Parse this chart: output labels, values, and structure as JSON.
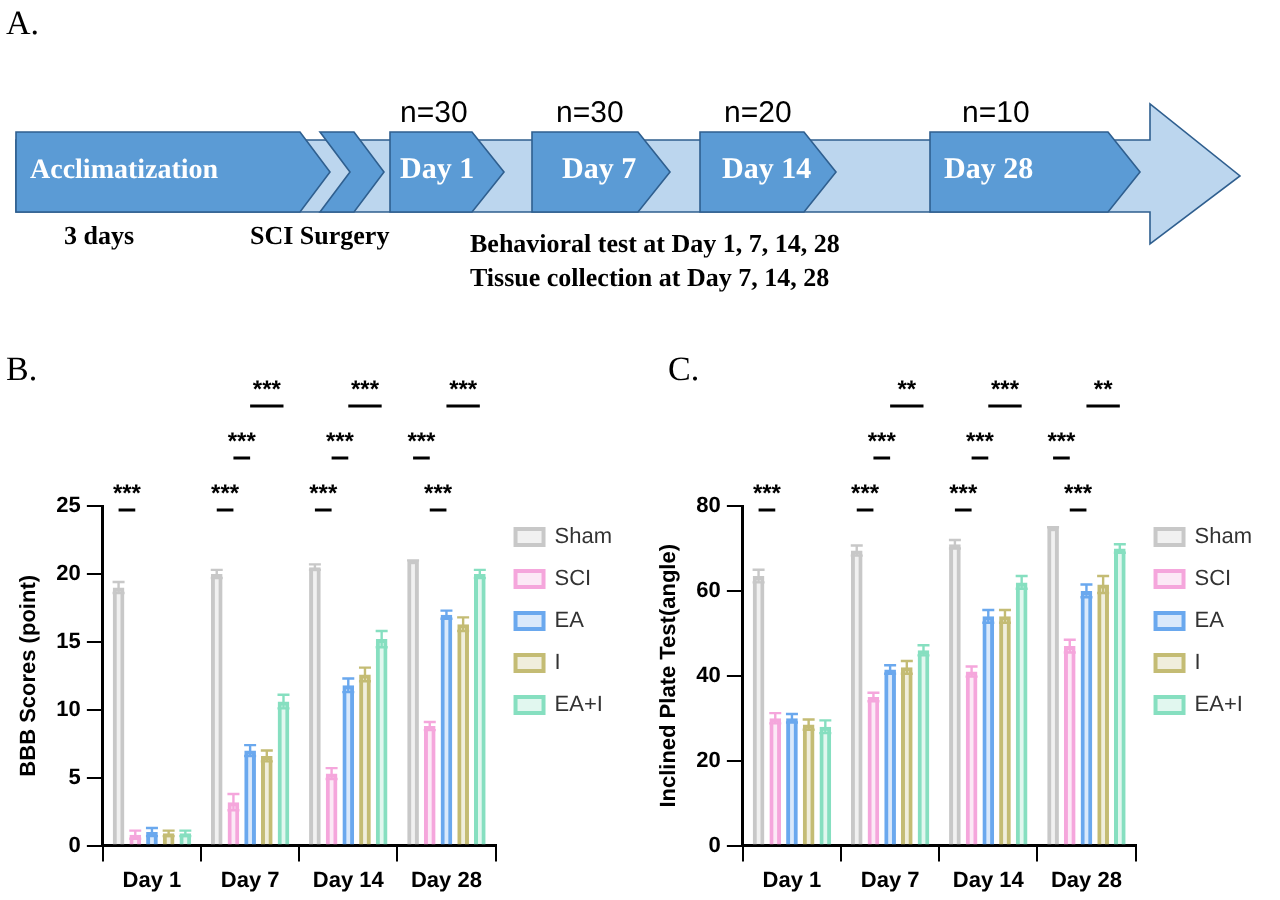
{
  "chart_data": [
    {
      "type": "other",
      "title": "A.",
      "annotations": [
        "n=30",
        "n=30",
        "n=20",
        "n=10",
        "Acclimatization",
        "Day 1",
        "Day 7",
        "Day 14",
        "Day 28",
        "3 days",
        "SCI Surgery",
        "Behavioral test at Day 1, 7, 14, 28",
        "Tissue collection at Day 7, 14, 28"
      ]
    },
    {
      "type": "bar",
      "title": "B.",
      "ylabel": "BBB Scores (point)",
      "categories": [
        "Day 1",
        "Day 7",
        "Day 14",
        "Day 28"
      ],
      "ylim": [
        0,
        25
      ],
      "yticks": [
        0,
        5,
        10,
        15,
        20,
        25
      ],
      "grid": false,
      "legend": "right",
      "series": [
        {
          "name": "Sham",
          "color": "#c8c8c8",
          "values": [
            19,
            20,
            20.5,
            21
          ],
          "errors": [
            0.4,
            0.3,
            0.2,
            0
          ]
        },
        {
          "name": "SCI",
          "color": "#f5a6dc",
          "values": [
            0.8,
            3.2,
            5.3,
            8.8
          ],
          "errors": [
            0.3,
            0.6,
            0.4,
            0.3
          ]
        },
        {
          "name": "EA",
          "color": "#6aa8ee",
          "values": [
            1,
            7,
            11.8,
            17
          ],
          "errors": [
            0.3,
            0.4,
            0.5,
            0.3
          ]
        },
        {
          "name": "I",
          "color": "#c4bc74",
          "values": [
            0.9,
            6.6,
            12.6,
            16.3
          ],
          "errors": [
            0.2,
            0.4,
            0.5,
            0.5
          ]
        },
        {
          "name": "EA+I",
          "color": "#86dfc0",
          "values": [
            0.9,
            10.6,
            15.2,
            20
          ],
          "errors": [
            0.2,
            0.5,
            0.6,
            0.3
          ]
        }
      ],
      "annotations": [
        "***",
        "***",
        "***",
        "***",
        "***",
        "***",
        "***",
        "***",
        "***",
        "***"
      ]
    },
    {
      "type": "bar",
      "title": "C.",
      "ylabel": "Inclined Plate Test(angle)",
      "categories": [
        "Day 1",
        "Day 7",
        "Day 14",
        "Day 28"
      ],
      "ylim": [
        0,
        80
      ],
      "yticks": [
        0,
        20,
        40,
        60,
        80
      ],
      "grid": false,
      "legend": "right",
      "series": [
        {
          "name": "Sham",
          "color": "#c8c8c8",
          "values": [
            63.5,
            69.5,
            71,
            75
          ],
          "errors": [
            1.5,
            1.2,
            1,
            0
          ]
        },
        {
          "name": "SCI",
          "color": "#f5a6dc",
          "values": [
            30,
            35,
            41,
            47
          ],
          "errors": [
            1.2,
            1,
            1.2,
            1.5
          ]
        },
        {
          "name": "EA",
          "color": "#6aa8ee",
          "values": [
            30,
            41.5,
            54,
            60
          ],
          "errors": [
            1,
            1,
            1.5,
            1.5
          ]
        },
        {
          "name": "I",
          "color": "#c4bc74",
          "values": [
            28.5,
            42,
            54,
            61.5
          ],
          "errors": [
            1.2,
            1.5,
            1.5,
            2
          ]
        },
        {
          "name": "EA+I",
          "color": "#86dfc0",
          "values": [
            28,
            46,
            62,
            70
          ],
          "errors": [
            1.5,
            1.2,
            1.5,
            1
          ]
        }
      ],
      "annotations": [
        "***",
        "***",
        "***",
        "**",
        "***",
        "***",
        "***",
        "***",
        "***",
        "**"
      ]
    }
  ]
}
